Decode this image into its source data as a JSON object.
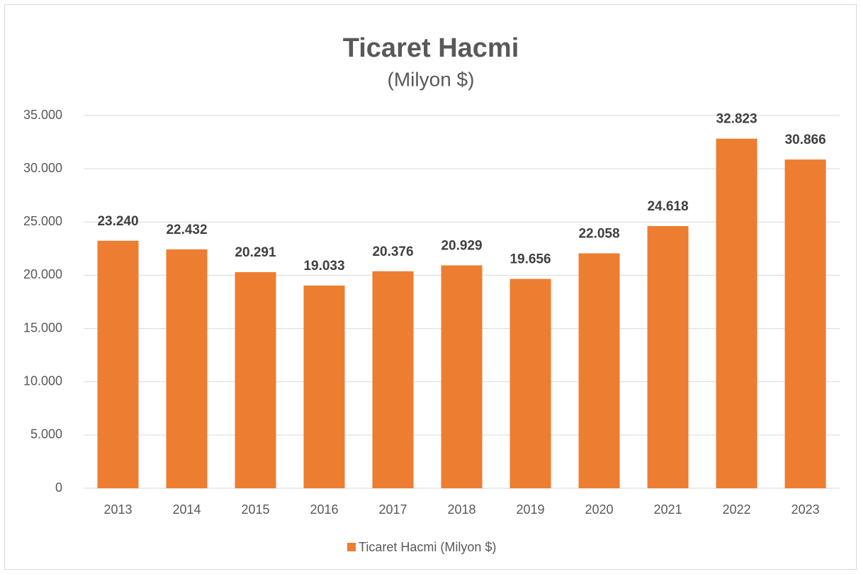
{
  "chart_data": {
    "type": "bar",
    "title": "Ticaret Hacmi",
    "subtitle": "(Milyon $)",
    "categories": [
      "2013",
      "2014",
      "2015",
      "2016",
      "2017",
      "2018",
      "2019",
      "2020",
      "2021",
      "2022",
      "2023"
    ],
    "series": [
      {
        "name": "Ticaret Hacmi (Milyon $)",
        "color": "#ed7d31",
        "values": [
          23240,
          22432,
          20291,
          19033,
          20376,
          20929,
          19656,
          22058,
          24618,
          32823,
          30866
        ],
        "value_labels": [
          "23.240",
          "22.432",
          "20.291",
          "19.033",
          "20.376",
          "20.929",
          "19.656",
          "22.058",
          "24.618",
          "32.823",
          "30.866"
        ]
      }
    ],
    "ylim": [
      0,
      35000
    ],
    "yticks": [
      0,
      {
        "value": 5000,
        "label": "5.000"
      },
      {
        "value": 10000,
        "label": "10.000"
      },
      {
        "value": 15000,
        "label": "15.000"
      },
      {
        "value": 20000,
        "label": "20.000"
      },
      {
        "value": 25000,
        "label": "25.000"
      },
      {
        "value": 30000,
        "label": "30.000"
      },
      {
        "value": 35000,
        "label": "35.000"
      }
    ],
    "grid": true,
    "legend": "bottom"
  }
}
